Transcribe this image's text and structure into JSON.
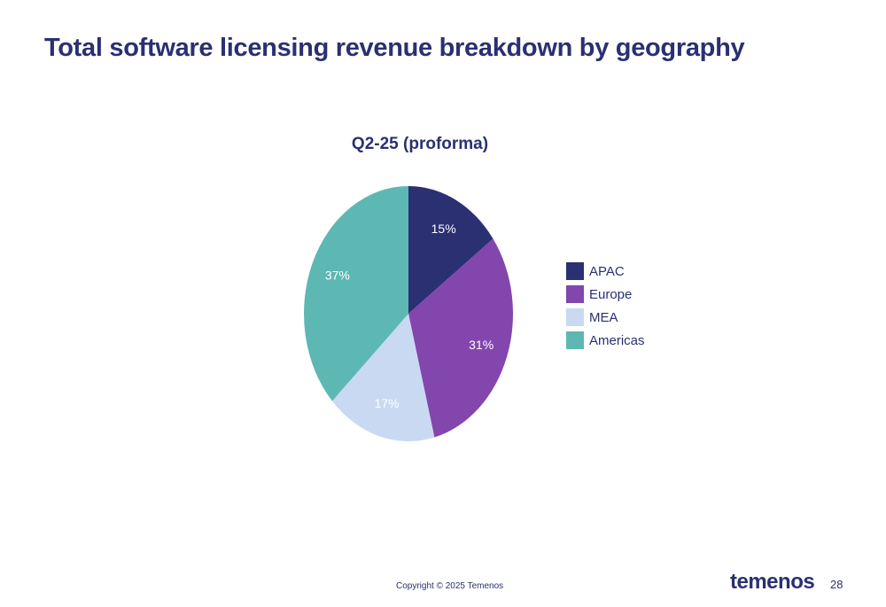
{
  "slide": {
    "title": "Total software licensing revenue breakdown by geography",
    "copyright": "Copyright © 2025 Temenos",
    "brand": "temenos",
    "page_number": "28"
  },
  "chart_data": {
    "type": "pie",
    "title": "Q2-25 (proforma)",
    "categories": [
      "APAC",
      "Europe",
      "MEA",
      "Americas"
    ],
    "values": [
      15,
      31,
      17,
      37
    ],
    "data_labels": [
      "15%",
      "31%",
      "17%",
      "37%"
    ],
    "colors": [
      "#2a3072",
      "#8246ad",
      "#cad9f2",
      "#5db8b4"
    ],
    "label_colors": [
      "#ffffff",
      "#ffffff",
      "#ffffff",
      "#ffffff"
    ],
    "legend_position": "right"
  }
}
